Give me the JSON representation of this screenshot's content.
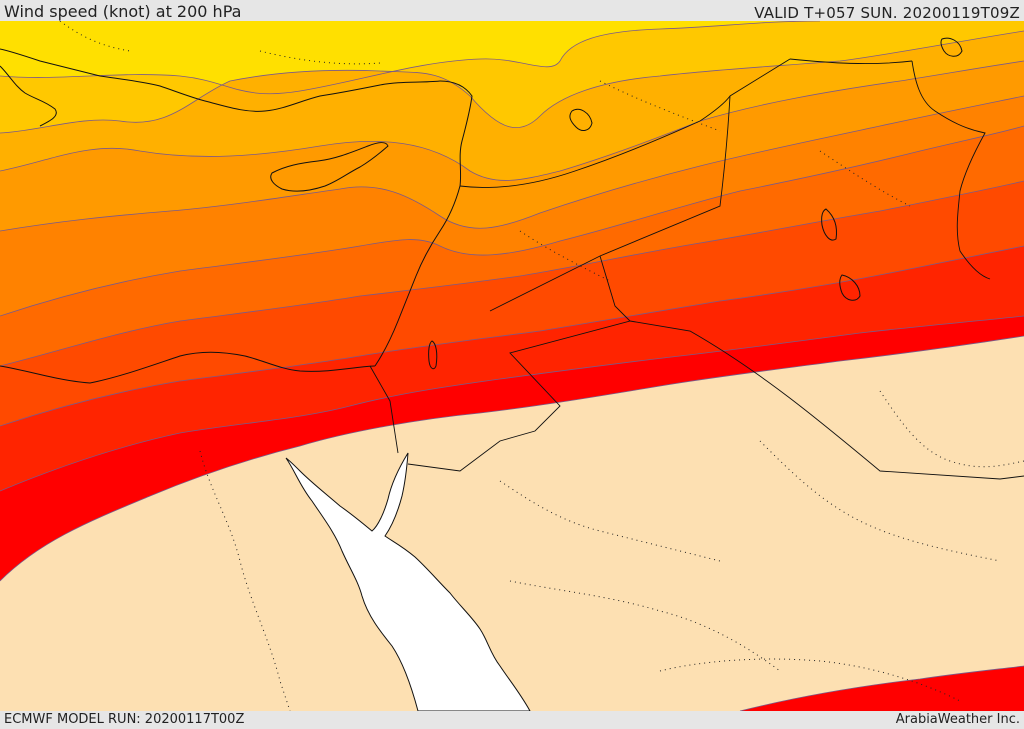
{
  "header": {
    "title": "Wind speed (knot) at 200 hPa",
    "valid_time": "VALID T+057 SUN. 20200119T09Z"
  },
  "footer": {
    "model_run": "ECMWF MODEL RUN: 20200117T00Z",
    "credit": "ArabiaWeather Inc."
  },
  "map": {
    "colors": {
      "land": "#fde0b2",
      "sea": "#ffffff",
      "band_1": "#ffe000",
      "band_2": "#ffc800",
      "band_3": "#ffb000",
      "band_4": "#ff9a00",
      "band_5": "#ff8200",
      "band_6": "#ff6a00",
      "band_7": "#ff4a00",
      "band_8": "#ff2400",
      "band_9": "#ff0000",
      "contour_line": "#7a5a8a",
      "border_line": "#111111"
    }
  }
}
